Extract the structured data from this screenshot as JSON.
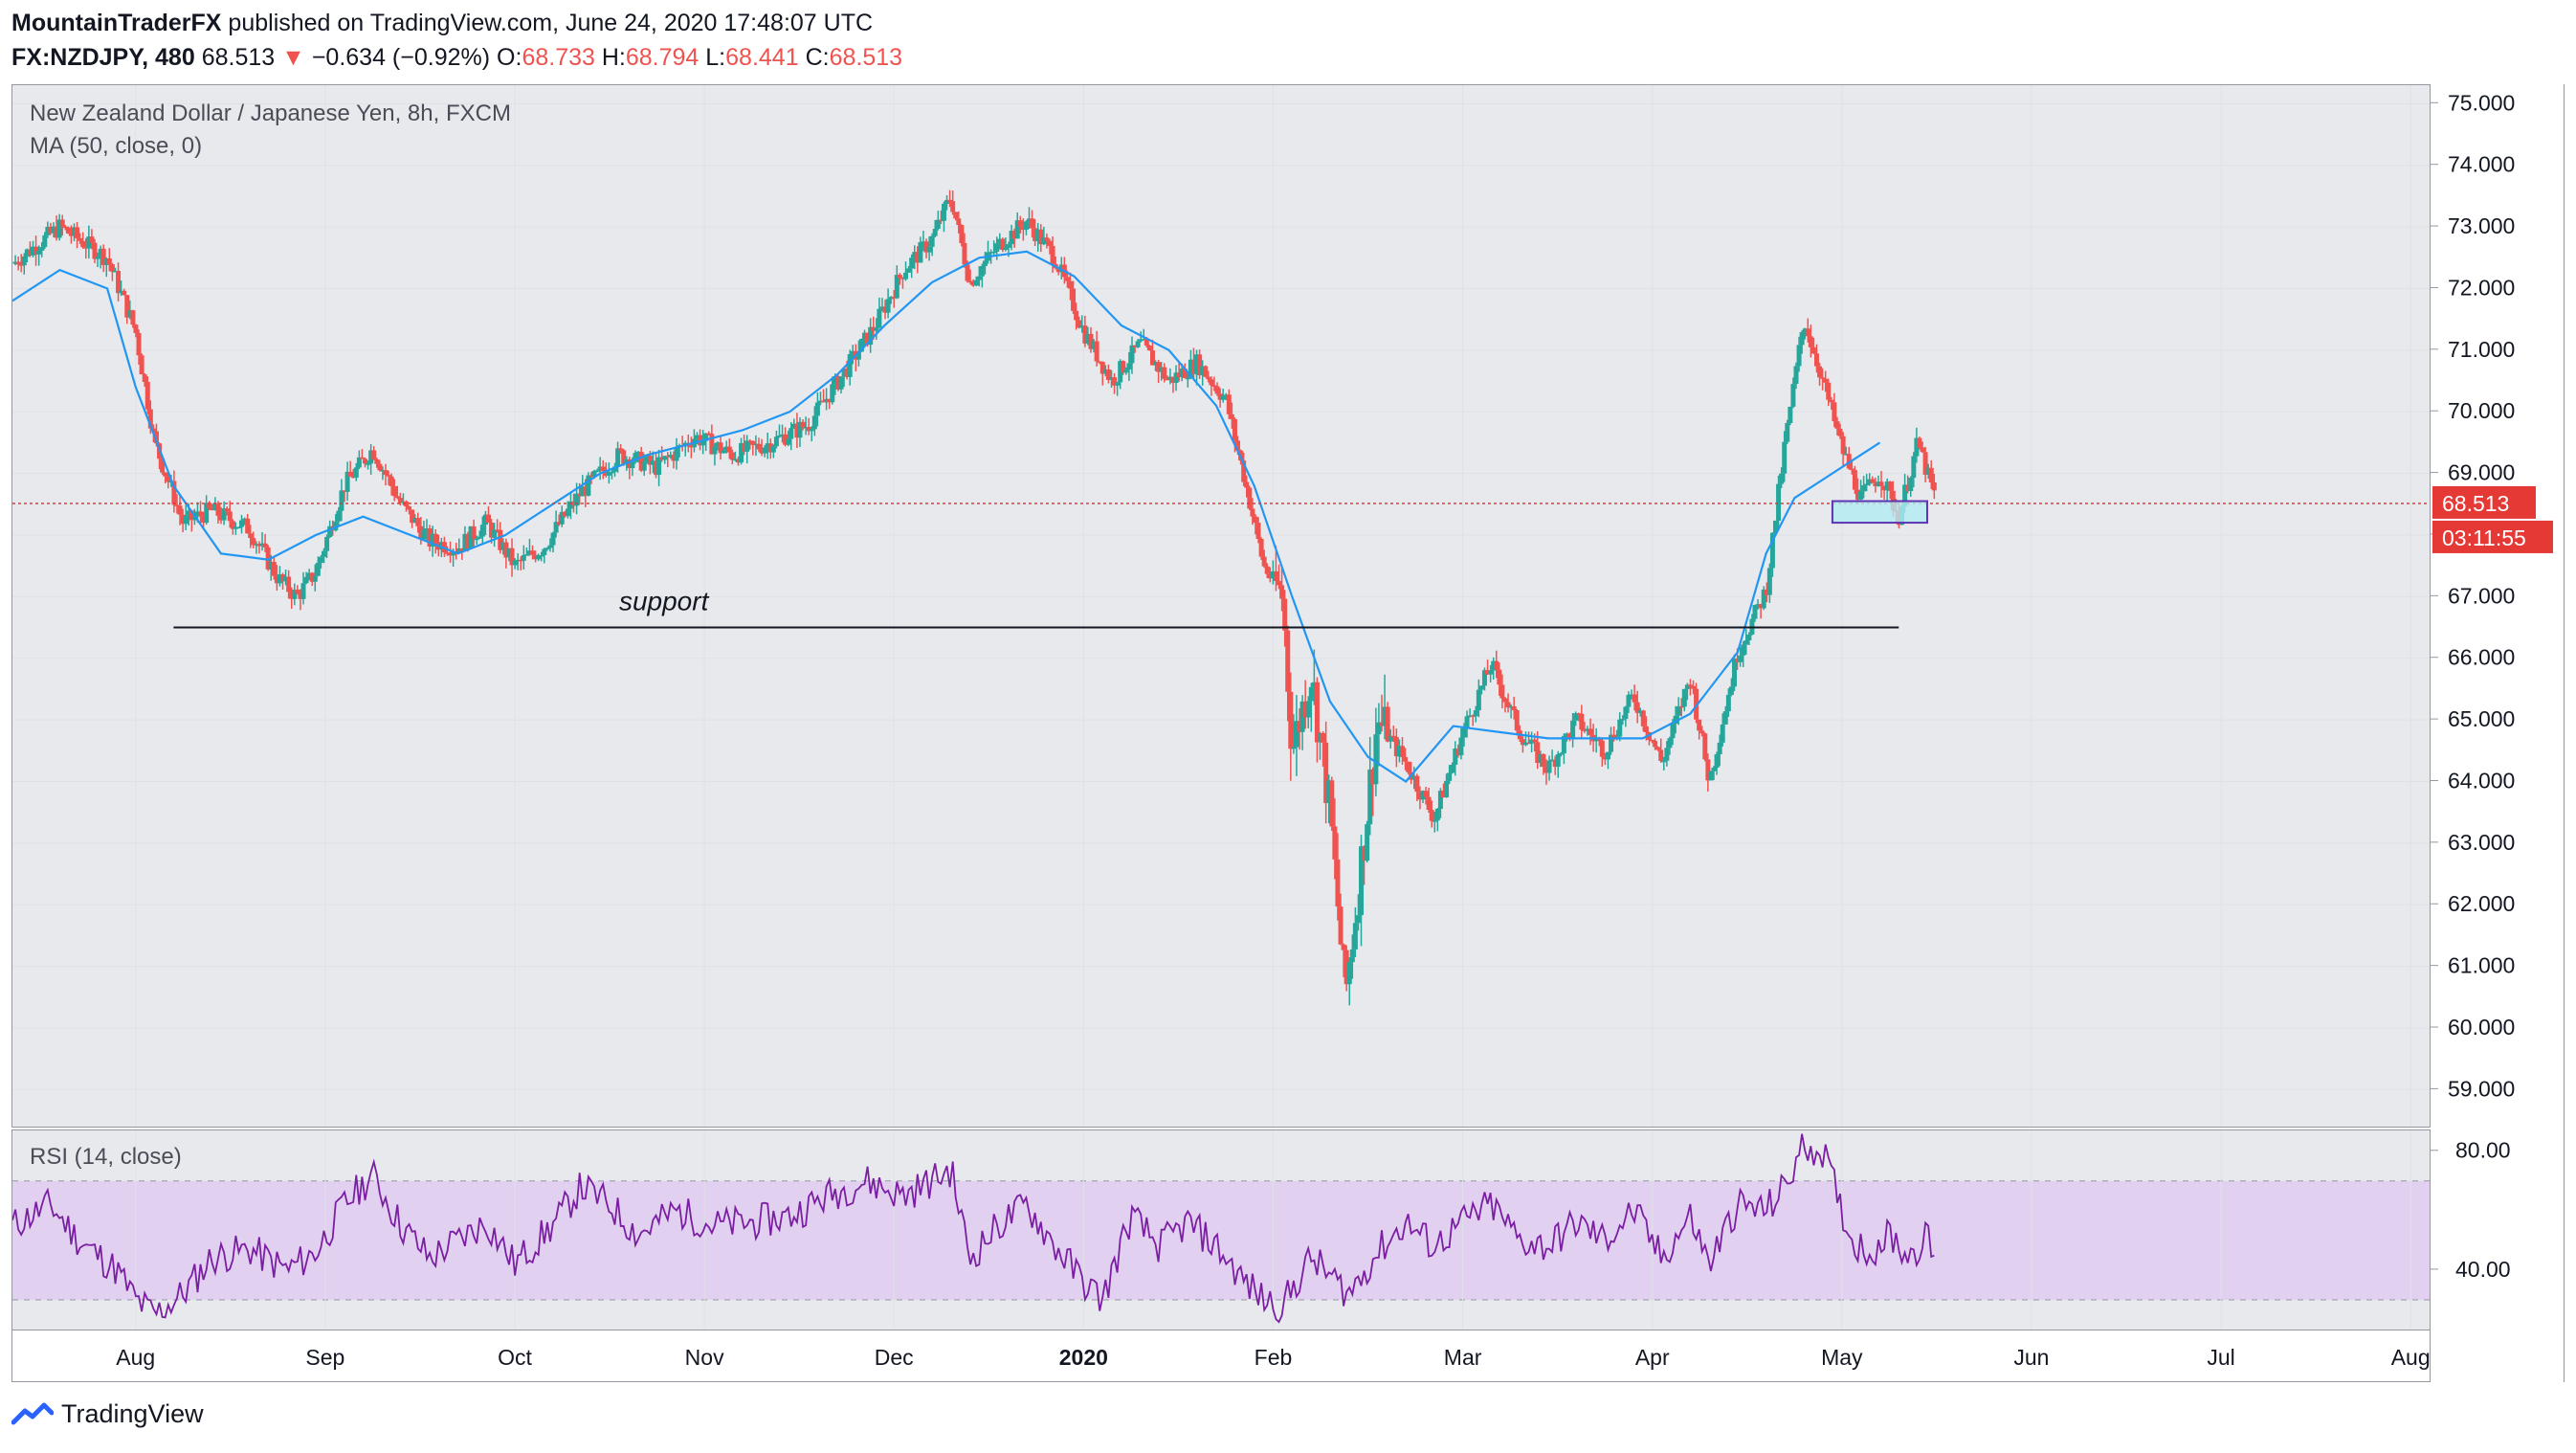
{
  "header": {
    "author": "MountainTraderFX",
    "published": "published on TradingView.com, June 24, 2020 17:48:07 UTC"
  },
  "ohlc": {
    "symbol": "FX:NZDJPY, 480",
    "last": "68.513",
    "change_arrow": "▼",
    "change": "−0.634 (−0.92%)",
    "o_label": "O:",
    "o": "68.733",
    "h_label": "H:",
    "h": "68.794",
    "l_label": "L:",
    "l": "68.441",
    "c_label": "C:",
    "c": "68.513"
  },
  "price_pane": {
    "title": "New Zealand Dollar / Japanese Yen, 8h, FXCM",
    "indicator": "MA (50, close, 0)",
    "annotation": "support",
    "last_price_label": "68.513",
    "countdown_label": "03:11:55"
  },
  "rsi_pane": {
    "title": "RSI (14, close)"
  },
  "branding": {
    "logo_text": "TradingView",
    "logo_icon": "tradingview-logo-icon"
  },
  "colors": {
    "up": "#26a69a",
    "down": "#ef5350",
    "ma": "#2196f3",
    "rsi": "#7b1fa2",
    "rsi_band": "#e1d0f0",
    "last_price": "#e53935",
    "box_fill": "#b2ebf2",
    "box_stroke": "#5e35b1",
    "support": "#131722"
  },
  "chart_data": [
    {
      "type": "candlestick",
      "title": "New Zealand Dollar / Japanese Yen, 8h, FXCM",
      "ylim": [
        58.4,
        75.3
      ],
      "y_ticks": [
        59.0,
        60.0,
        61.0,
        62.0,
        63.0,
        64.0,
        65.0,
        66.0,
        67.0,
        68.0,
        69.0,
        70.0,
        71.0,
        72.0,
        73.0,
        74.0,
        75.0
      ],
      "y_tick_labels": [
        "59.000",
        "60.000",
        "61.000",
        "62.000",
        "63.000",
        "64.000",
        "65.000",
        "66.000",
        "67.000",
        "68.000",
        "69.000",
        "70.000",
        "71.000",
        "72.000",
        "73.000",
        "74.000",
        "75.000"
      ],
      "x_tick_labels": [
        "Aug",
        "Sep",
        "Oct",
        "Nov",
        "Dec",
        "2020",
        "Feb",
        "Mar",
        "Apr",
        "May",
        "Jun",
        "Jul",
        "Aug"
      ],
      "x_tick_months": [
        1,
        2,
        3,
        4,
        5,
        6,
        7,
        8,
        9,
        10,
        11,
        12,
        13
      ],
      "x_range_months": [
        0.35,
        13.1
      ],
      "close_path": [
        [
          0.35,
          72.4
        ],
        [
          0.6,
          73.0
        ],
        [
          0.85,
          72.5
        ],
        [
          1.0,
          71.3
        ],
        [
          1.1,
          69.5
        ],
        [
          1.25,
          68.2
        ],
        [
          1.4,
          68.4
        ],
        [
          1.6,
          68.1
        ],
        [
          1.75,
          67.3
        ],
        [
          1.85,
          67.0
        ],
        [
          1.95,
          67.4
        ],
        [
          2.1,
          68.8
        ],
        [
          2.25,
          69.4
        ],
        [
          2.4,
          68.5
        ],
        [
          2.55,
          67.9
        ],
        [
          2.7,
          67.8
        ],
        [
          2.85,
          68.2
        ],
        [
          3.0,
          67.5
        ],
        [
          3.15,
          67.8
        ],
        [
          3.35,
          68.7
        ],
        [
          3.55,
          69.3
        ],
        [
          3.75,
          69.1
        ],
        [
          3.95,
          69.6
        ],
        [
          4.15,
          69.3
        ],
        [
          4.35,
          69.5
        ],
        [
          4.55,
          69.8
        ],
        [
          4.75,
          70.7
        ],
        [
          4.9,
          71.4
        ],
        [
          5.05,
          72.3
        ],
        [
          5.2,
          72.8
        ],
        [
          5.3,
          73.5
        ],
        [
          5.4,
          72.1
        ],
        [
          5.55,
          72.7
        ],
        [
          5.7,
          73.1
        ],
        [
          5.85,
          72.5
        ],
        [
          6.0,
          71.3
        ],
        [
          6.15,
          70.5
        ],
        [
          6.3,
          71.1
        ],
        [
          6.45,
          70.5
        ],
        [
          6.6,
          70.8
        ],
        [
          6.75,
          70.2
        ],
        [
          6.85,
          68.9
        ],
        [
          6.95,
          67.5
        ],
        [
          7.05,
          67.0
        ],
        [
          7.1,
          64.5
        ],
        [
          7.2,
          65.8
        ],
        [
          7.3,
          63.5
        ],
        [
          7.38,
          60.5
        ],
        [
          7.45,
          62.3
        ],
        [
          7.55,
          65.0
        ],
        [
          7.7,
          64.3
        ],
        [
          7.85,
          63.4
        ],
        [
          8.0,
          64.8
        ],
        [
          8.15,
          65.9
        ],
        [
          8.3,
          64.8
        ],
        [
          8.45,
          64.2
        ],
        [
          8.6,
          65.0
        ],
        [
          8.75,
          64.5
        ],
        [
          8.9,
          65.4
        ],
        [
          9.05,
          64.3
        ],
        [
          9.2,
          65.7
        ],
        [
          9.3,
          64.0
        ],
        [
          9.45,
          66.1
        ],
        [
          9.6,
          67.1
        ],
        [
          9.7,
          69.5
        ],
        [
          9.8,
          71.5
        ],
        [
          9.9,
          70.5
        ],
        [
          10.0,
          69.4
        ],
        [
          10.1,
          68.6
        ],
        [
          10.2,
          69.0
        ],
        [
          10.3,
          68.3
        ],
        [
          10.4,
          69.5
        ],
        [
          10.5,
          68.5
        ]
      ],
      "ma_path": [
        [
          0.35,
          71.8
        ],
        [
          0.6,
          72.3
        ],
        [
          0.85,
          72.0
        ],
        [
          1.0,
          70.4
        ],
        [
          1.2,
          68.8
        ],
        [
          1.45,
          67.7
        ],
        [
          1.7,
          67.6
        ],
        [
          1.95,
          68.0
        ],
        [
          2.2,
          68.3
        ],
        [
          2.45,
          68.0
        ],
        [
          2.7,
          67.7
        ],
        [
          2.95,
          68.0
        ],
        [
          3.2,
          68.5
        ],
        [
          3.45,
          69.0
        ],
        [
          3.7,
          69.3
        ],
        [
          3.95,
          69.5
        ],
        [
          4.2,
          69.7
        ],
        [
          4.45,
          70.0
        ],
        [
          4.7,
          70.6
        ],
        [
          4.95,
          71.4
        ],
        [
          5.2,
          72.1
        ],
        [
          5.45,
          72.5
        ],
        [
          5.7,
          72.6
        ],
        [
          5.95,
          72.2
        ],
        [
          6.2,
          71.4
        ],
        [
          6.45,
          71.0
        ],
        [
          6.7,
          70.1
        ],
        [
          6.9,
          68.8
        ],
        [
          7.1,
          67.0
        ],
        [
          7.3,
          65.3
        ],
        [
          7.5,
          64.4
        ],
        [
          7.7,
          64.0
        ],
        [
          7.95,
          64.9
        ],
        [
          8.2,
          64.8
        ],
        [
          8.45,
          64.7
        ],
        [
          8.7,
          64.7
        ],
        [
          8.95,
          64.7
        ],
        [
          9.2,
          65.1
        ],
        [
          9.45,
          66.1
        ],
        [
          9.6,
          67.7
        ],
        [
          9.75,
          68.6
        ],
        [
          9.9,
          68.9
        ],
        [
          10.05,
          69.2
        ],
        [
          10.2,
          69.5
        ]
      ],
      "support_level": 66.5,
      "support_range_months": [
        1.2,
        10.3
      ],
      "last_price": 68.513,
      "consolidation_box": {
        "x": [
          9.95,
          10.45
        ],
        "y": [
          68.2,
          68.55
        ]
      }
    },
    {
      "type": "line",
      "title": "RSI (14, close)",
      "ylim": [
        20,
        87
      ],
      "y_ticks": [
        40.0,
        80.0
      ],
      "y_tick_labels": [
        "40.00",
        "80.00"
      ],
      "band": [
        30,
        70
      ],
      "x_range_months": [
        0.35,
        13.1
      ],
      "series": [
        {
          "values_path": [
            [
              0.35,
              55
            ],
            [
              0.55,
              62
            ],
            [
              0.7,
              50
            ],
            [
              0.9,
              40
            ],
            [
              1.0,
              30
            ],
            [
              1.1,
              25
            ],
            [
              1.25,
              32
            ],
            [
              1.4,
              44
            ],
            [
              1.6,
              47
            ],
            [
              1.8,
              40
            ],
            [
              1.95,
              46
            ],
            [
              2.1,
              62
            ],
            [
              2.25,
              72
            ],
            [
              2.4,
              55
            ],
            [
              2.55,
              44
            ],
            [
              2.7,
              50
            ],
            [
              2.85,
              56
            ],
            [
              3.0,
              42
            ],
            [
              3.2,
              55
            ],
            [
              3.35,
              68
            ],
            [
              3.5,
              62
            ],
            [
              3.65,
              52
            ],
            [
              3.85,
              60
            ],
            [
              4.05,
              55
            ],
            [
              4.25,
              56
            ],
            [
              4.45,
              58
            ],
            [
              4.65,
              65
            ],
            [
              4.85,
              70
            ],
            [
              5.05,
              65
            ],
            [
              5.2,
              70
            ],
            [
              5.3,
              74
            ],
            [
              5.4,
              44
            ],
            [
              5.55,
              55
            ],
            [
              5.7,
              62
            ],
            [
              5.85,
              48
            ],
            [
              6.0,
              36
            ],
            [
              6.1,
              30
            ],
            [
              6.25,
              58
            ],
            [
              6.4,
              48
            ],
            [
              6.55,
              56
            ],
            [
              6.7,
              48
            ],
            [
              6.85,
              36
            ],
            [
              6.95,
              30
            ],
            [
              7.05,
              28
            ],
            [
              7.2,
              44
            ],
            [
              7.3,
              38
            ],
            [
              7.4,
              32
            ],
            [
              7.55,
              46
            ],
            [
              7.7,
              56
            ],
            [
              7.85,
              48
            ],
            [
              8.0,
              56
            ],
            [
              8.15,
              62
            ],
            [
              8.3,
              50
            ],
            [
              8.45,
              48
            ],
            [
              8.6,
              56
            ],
            [
              8.75,
              50
            ],
            [
              8.9,
              60
            ],
            [
              9.05,
              44
            ],
            [
              9.2,
              58
            ],
            [
              9.3,
              42
            ],
            [
              9.45,
              62
            ],
            [
              9.6,
              60
            ],
            [
              9.7,
              68
            ],
            [
              9.8,
              82
            ],
            [
              9.9,
              80
            ],
            [
              9.95,
              70
            ],
            [
              10.05,
              50
            ],
            [
              10.15,
              46
            ],
            [
              10.25,
              52
            ],
            [
              10.35,
              45
            ],
            [
              10.45,
              51
            ],
            [
              10.5,
              42
            ]
          ]
        }
      ]
    }
  ]
}
